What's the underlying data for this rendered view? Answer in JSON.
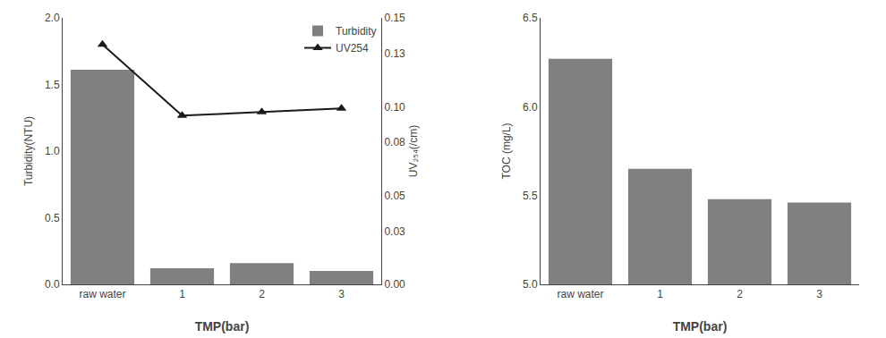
{
  "chart_data": [
    {
      "type": "bar",
      "categories": [
        "raw water",
        "1",
        "2",
        "3"
      ],
      "series": [
        {
          "name": "Turbidity",
          "type": "bar",
          "color": "#808080",
          "values": [
            1.61,
            0.12,
            0.16,
            0.1
          ]
        },
        {
          "name": "UV254",
          "type": "line",
          "axis": "y2",
          "color": "#1a1a1a",
          "marker": "triangle-up",
          "values": [
            0.135,
            0.095,
            0.097,
            0.099
          ]
        }
      ],
      "xlabel": "TMP(bar)",
      "ylabel": "Turbidity(NTU)",
      "y2label": "UV₂₅₄(/cm)",
      "ylim": [
        0.0,
        2.0
      ],
      "yticks": [
        {
          "value": 0.0,
          "label": "0.0"
        },
        0.5,
        {
          "value": 1.0,
          "label": "1.0"
        },
        1.5,
        {
          "value": 2.0,
          "label": "2.0"
        }
      ],
      "y2lim": [
        0.0,
        0.15
      ],
      "y2ticks": [
        {
          "value": 0.0,
          "label": "0.00"
        },
        0.03,
        0.05,
        0.08,
        {
          "value": 0.1,
          "label": "0.10"
        },
        0.13,
        0.15
      ],
      "legend": "upper right",
      "grid": false
    },
    {
      "type": "bar",
      "categories": [
        "raw water",
        "1",
        "2",
        "3"
      ],
      "values": [
        6.27,
        5.65,
        5.48,
        5.46
      ],
      "color": "#808080",
      "xlabel": "TMP(bar)",
      "ylabel": "TOC (mg/L)",
      "ylim": [
        5.0,
        6.5
      ],
      "yticks": [
        {
          "value": 5.0,
          "label": "5.0"
        },
        5.5,
        {
          "value": 6.0,
          "label": "6.0"
        },
        6.5
      ],
      "grid": false
    }
  ]
}
